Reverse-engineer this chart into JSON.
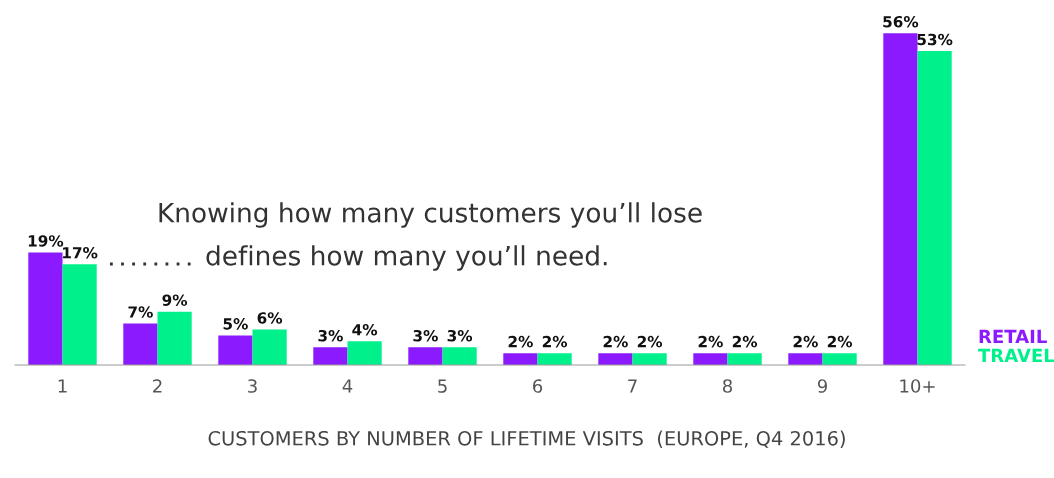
{
  "chart_data": {
    "type": "bar",
    "title": "CUSTOMERS BY NUMBER OF LIFETIME VISITS  (EUROPE, Q4 2016)",
    "categories": [
      "1",
      "2",
      "3",
      "4",
      "5",
      "6",
      "7",
      "8",
      "9",
      "10+"
    ],
    "series": [
      {
        "name": "RETAIL",
        "color": "#8c1aff",
        "values": [
          19,
          7,
          5,
          3,
          3,
          2,
          2,
          2,
          2,
          56
        ],
        "value_labels": [
          "19%",
          "7%",
          "5%",
          "3%",
          "3%",
          "2%",
          "2%",
          "2%",
          "2%",
          "56%"
        ]
      },
      {
        "name": "TRAVEL",
        "color": "#00f08c",
        "values": [
          17,
          9,
          6,
          4,
          3,
          2,
          2,
          2,
          2,
          53
        ],
        "value_labels": [
          "17%",
          "9%",
          "6%",
          "4%",
          "3%",
          "2%",
          "2%",
          "2%",
          "2%",
          "53%"
        ]
      }
    ],
    "annotations": [
      "Knowing how many customers you’ll lose",
      "defines how many you’ll need."
    ],
    "legend": "bottom right",
    "grid": false
  }
}
